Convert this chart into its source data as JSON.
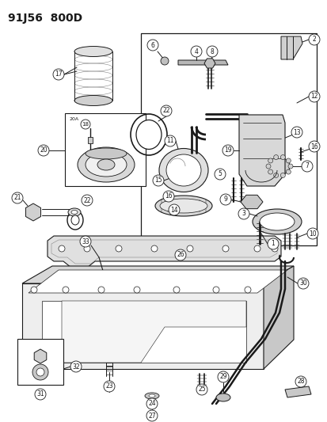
{
  "title": "91J56  800D",
  "background_color": "#ffffff",
  "line_color": "#1a1a1a",
  "title_fontsize": 10,
  "fig_width": 4.14,
  "fig_height": 5.33,
  "dpi": 100
}
